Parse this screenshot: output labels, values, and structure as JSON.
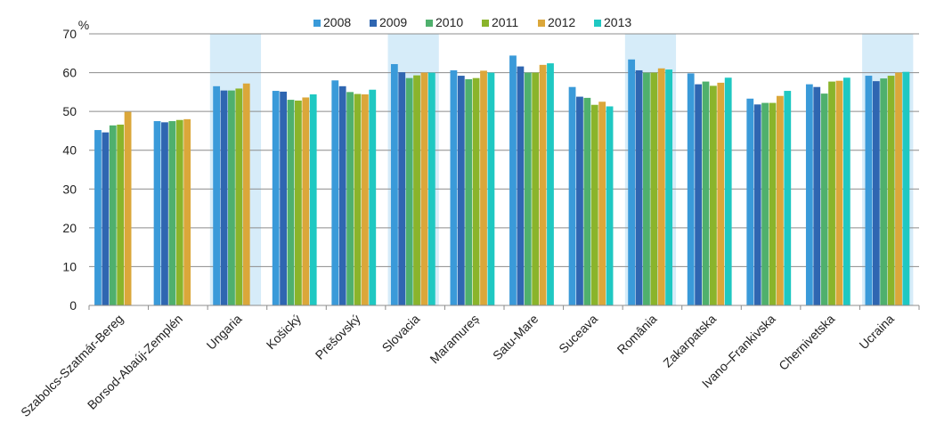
{
  "chart_data": {
    "type": "bar",
    "ylabel": "%",
    "ylim": [
      0,
      70
    ],
    "yticks": [
      0,
      10,
      20,
      30,
      40,
      50,
      60,
      70
    ],
    "grid": true,
    "legend_position": "top",
    "categories": [
      "Szabolcs-Szatmár-Bereg",
      "Borsod-Abaúj-Zemplén",
      "Ungaria",
      "Košický",
      "Prešovský",
      "Slovacia",
      "Maramureș",
      "Satu-Mare",
      "Suceava",
      "România",
      "Zakarpatska",
      "Ivano–Frankivska",
      "Chernivetska",
      "Ucraina"
    ],
    "highlighted_categories": [
      "Ungaria",
      "Slovacia",
      "România",
      "Ucraina"
    ],
    "highlight_color": "#d6ecf9",
    "series": [
      {
        "name": "2008",
        "color": "#3a9ad9",
        "values": [
          45.2,
          47.5,
          56.5,
          55.3,
          58.0,
          62.2,
          60.6,
          64.4,
          56.3,
          63.4,
          59.8,
          53.3,
          57.0,
          59.2
        ]
      },
      {
        "name": "2009",
        "color": "#2f66b1",
        "values": [
          44.6,
          47.2,
          55.4,
          55.1,
          56.5,
          60.1,
          59.2,
          61.6,
          53.8,
          60.6,
          57.0,
          51.8,
          56.3,
          57.8
        ]
      },
      {
        "name": "2010",
        "color": "#4fb06d",
        "values": [
          46.4,
          47.5,
          55.4,
          53.0,
          55.0,
          58.6,
          58.3,
          60.0,
          53.5,
          60.0,
          57.7,
          52.2,
          54.6,
          58.5
        ]
      },
      {
        "name": "2011",
        "color": "#8ab42b",
        "values": [
          46.6,
          47.8,
          55.9,
          52.8,
          54.5,
          59.3,
          58.6,
          60.0,
          51.7,
          60.0,
          56.6,
          52.2,
          57.7,
          59.2
        ]
      },
      {
        "name": "2012",
        "color": "#dba73a",
        "values": [
          49.9,
          48.0,
          57.2,
          53.6,
          54.4,
          60.0,
          60.5,
          62.0,
          52.5,
          61.1,
          57.4,
          54.0,
          57.9,
          60.0
        ]
      },
      {
        "name": "2013",
        "color": "#1fc8c2",
        "values": [
          null,
          null,
          null,
          54.4,
          55.6,
          60.0,
          60.0,
          62.4,
          51.3,
          60.8,
          58.7,
          55.3,
          58.7,
          60.2
        ]
      }
    ]
  }
}
